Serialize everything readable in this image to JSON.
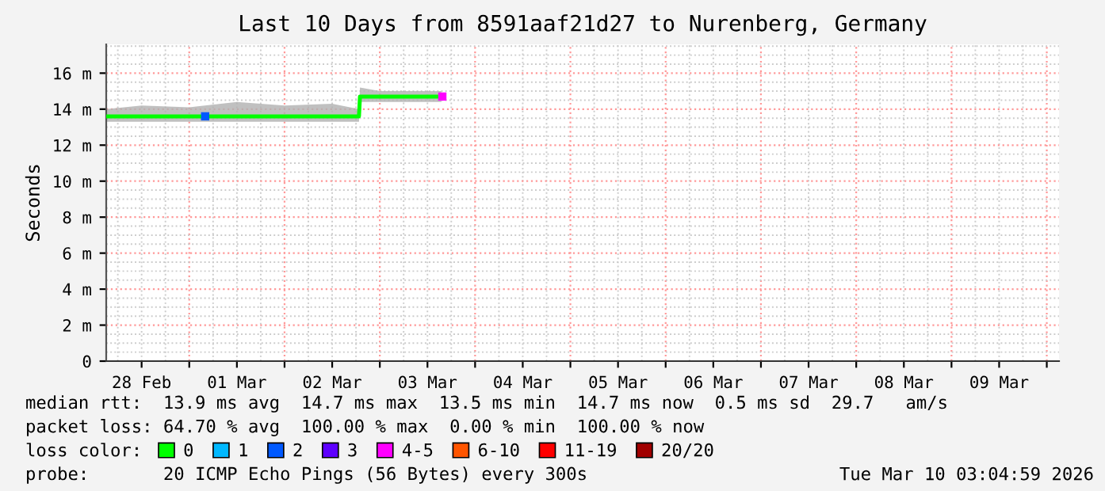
{
  "chart_data": {
    "type": "line",
    "title": "Last 10 Days from 8591aaf21d27 to Nurenberg, Germany",
    "ylabel": "Seconds",
    "xlim": [
      "2026-02-28T03:05",
      "2026-03-10T03:05"
    ],
    "xticks": [
      {
        "value": "2026-02-28T12:00",
        "label": "28 Feb"
      },
      {
        "value": "2026-03-01",
        "label": null
      },
      {
        "value": "2026-03-01T12:00",
        "label": "01 Mar"
      },
      {
        "value": "2026-03-02",
        "label": null
      },
      {
        "value": "2026-03-02T12:00",
        "label": "02 Mar"
      },
      {
        "value": "2026-03-03",
        "label": null
      },
      {
        "value": "2026-03-03T12:00",
        "label": "03 Mar"
      },
      {
        "value": "2026-03-04",
        "label": null
      },
      {
        "value": "2026-03-04T12:00",
        "label": "04 Mar"
      },
      {
        "value": "2026-03-05",
        "label": null
      },
      {
        "value": "2026-03-05T12:00",
        "label": "05 Mar"
      },
      {
        "value": "2026-03-06",
        "label": null
      },
      {
        "value": "2026-03-06T12:00",
        "label": "06 Mar"
      },
      {
        "value": "2026-03-07",
        "label": null
      },
      {
        "value": "2026-03-07T12:00",
        "label": "07 Mar"
      },
      {
        "value": "2026-03-08",
        "label": null
      },
      {
        "value": "2026-03-08T12:00",
        "label": "08 Mar"
      },
      {
        "value": "2026-03-09",
        "label": null
      },
      {
        "value": "2026-03-09T12:00",
        "label": "09 Mar"
      },
      {
        "value": "2026-03-10",
        "label": null
      }
    ],
    "ylim": [
      0,
      17.6
    ],
    "yticks": [
      0,
      {
        "value": 2,
        "label": "2 m"
      },
      {
        "value": 4,
        "label": "4 m"
      },
      {
        "value": 6,
        "label": "6 m"
      },
      {
        "value": 8,
        "label": "8 m"
      },
      {
        "value": 10,
        "label": "10 m"
      },
      {
        "value": 12,
        "label": "12 m"
      },
      {
        "value": 14,
        "label": "14 m"
      },
      {
        "value": 16,
        "label": "16 m"
      }
    ],
    "grid": true,
    "legend": "bottom",
    "legend_title": "loss color:",
    "series": [
      {
        "name": "0",
        "color": "#00ff00",
        "x": [
          "2026-02-28T03:05",
          "2026-02-28T12:00",
          "2026-03-01T00:00",
          "2026-03-01T12:00",
          "2026-03-02T00:00",
          "2026-03-02T12:00",
          "2026-03-02T18:45",
          "2026-03-02T19:00",
          "2026-03-03T00:00",
          "2026-03-03T08:00",
          "2026-03-03T15:30"
        ],
        "values": [
          13.6,
          13.6,
          13.6,
          13.6,
          13.6,
          13.6,
          13.6,
          14.7,
          14.7,
          14.7,
          14.7
        ],
        "lower": [
          13.3,
          13.3,
          13.3,
          13.3,
          13.3,
          13.3,
          13.3,
          14.4,
          14.4,
          14.4,
          14.4
        ],
        "upper": [
          14.0,
          14.2,
          14.1,
          14.4,
          14.2,
          14.3,
          14.0,
          15.2,
          15.0,
          15.0,
          15.0
        ]
      },
      {
        "name": "1",
        "color": "#00b8ff"
      },
      {
        "name": "2",
        "type": "scatter",
        "marker": "square",
        "color": "#0059ff",
        "x": [
          "2026-03-01T04:00"
        ],
        "values": [
          13.6
        ]
      },
      {
        "name": "3",
        "color": "#5e00ff"
      },
      {
        "name": "4-5",
        "type": "scatter",
        "marker": "square",
        "color": "#ff00ff",
        "x": [
          "2026-03-03T15:45"
        ],
        "values": [
          14.7
        ]
      },
      {
        "name": "6-10",
        "color": "#ff5500"
      },
      {
        "name": "11-19",
        "color": "#ff0000"
      },
      {
        "name": "20/20",
        "color": "#a10000"
      }
    ],
    "annotations": [
      "median rtt:  13.9 ms avg  14.7 ms max  13.5 ms min  14.7 ms now  0.5 ms sd  29.7   am/s",
      "packet loss: 64.70 % avg  100.00 % max  0.00 % min  100.00 % now",
      "probe:       20 ICMP Echo Pings (56 Bytes) every 300s",
      "Tue Mar 10 03:04:59 2026"
    ]
  }
}
